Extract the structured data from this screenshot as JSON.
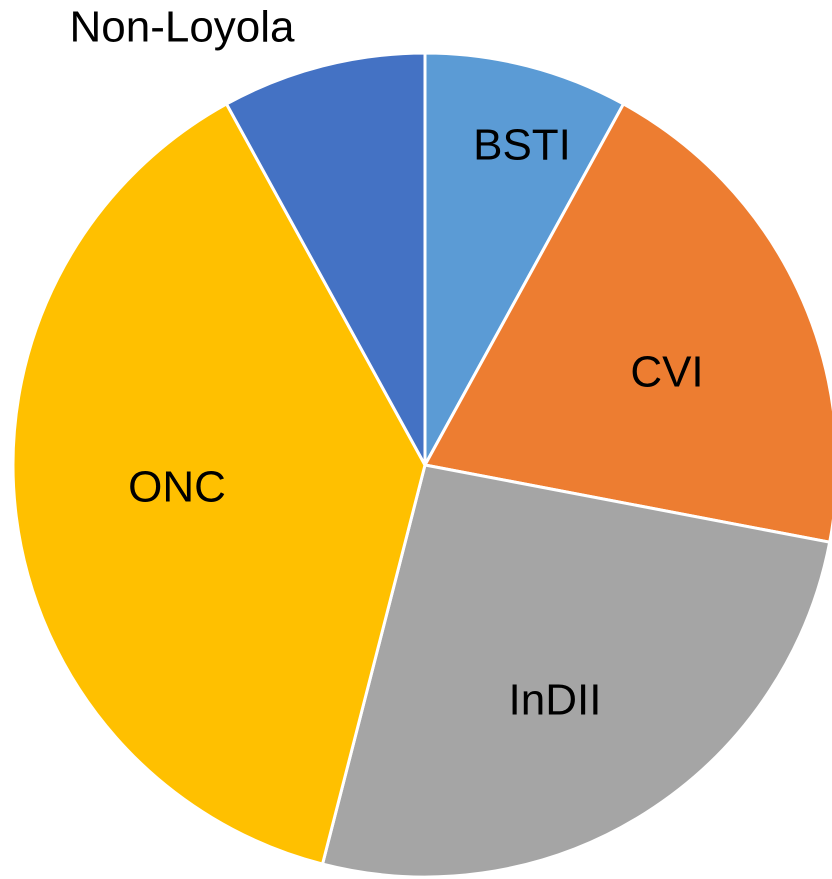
{
  "chart_data": {
    "type": "pie",
    "categories": [
      "BSTI",
      "CVI",
      "InDII",
      "ONC",
      "Non-Loyola"
    ],
    "values": [
      8,
      20,
      26,
      38,
      8
    ],
    "colors": [
      "#5b9bd5",
      "#ed7d31",
      "#a5a5a5",
      "#ffc000",
      "#4472c4"
    ]
  }
}
